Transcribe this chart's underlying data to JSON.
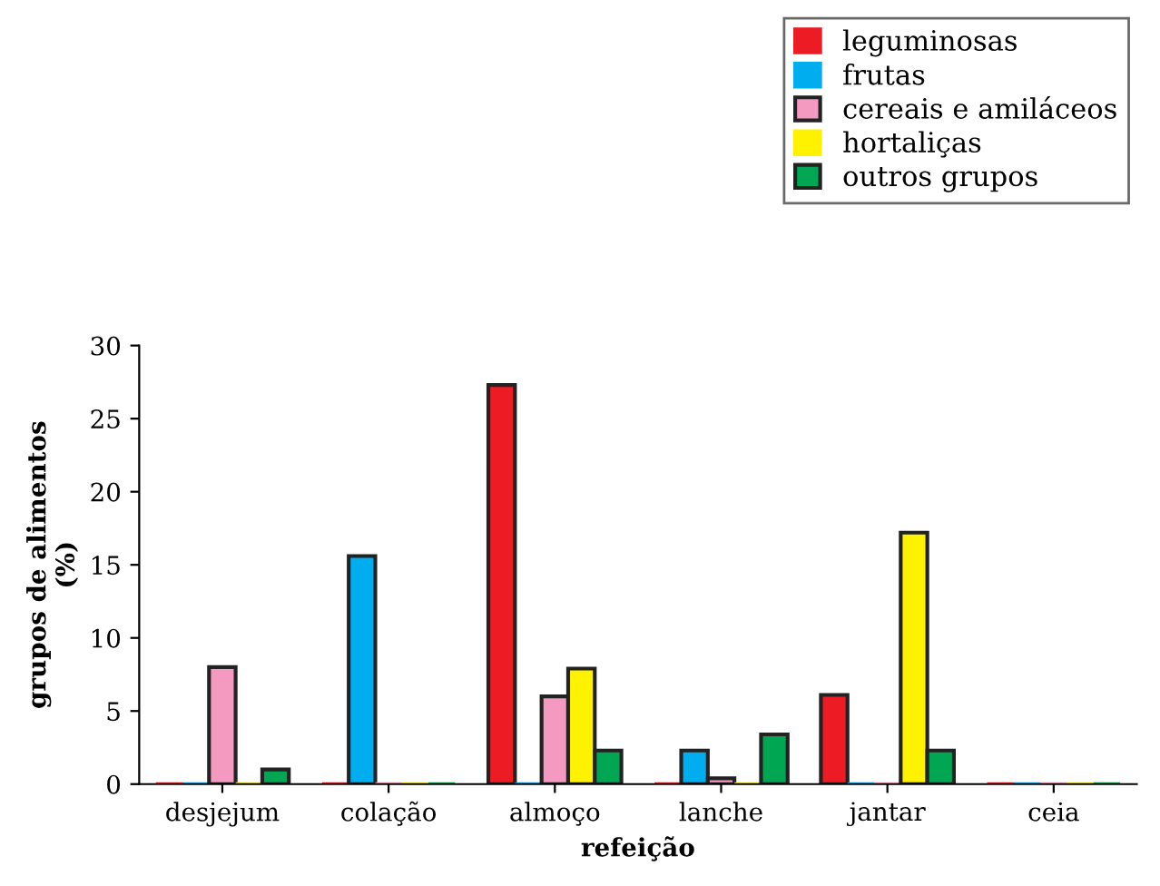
{
  "chart_data": {
    "type": "bar",
    "xlabel": "refeição",
    "ylabel": "grupos de alimentos\n(%)",
    "categories": [
      "desjejum",
      "colação",
      "almoço",
      "lanche",
      "jantar",
      "ceia"
    ],
    "series": [
      {
        "name": "leguminosas",
        "color": "#ed1c24",
        "values": [
          0,
          0,
          27.3,
          0,
          6.1,
          0
        ]
      },
      {
        "name": "frutas",
        "color": "#00aeef",
        "values": [
          0,
          15.6,
          0,
          2.3,
          0,
          0
        ]
      },
      {
        "name": "cereais e amiláceos",
        "color": "#f49ac1",
        "values": [
          8,
          0,
          6,
          0.4,
          0,
          0
        ]
      },
      {
        "name": "hortaliças",
        "color": "#fff200",
        "values": [
          0,
          0,
          7.9,
          0,
          17.2,
          0
        ]
      },
      {
        "name": "outros grupos",
        "color": "#00a651",
        "values": [
          1,
          0,
          2.3,
          3.4,
          2.3,
          0
        ]
      }
    ],
    "ylim": [
      0,
      30
    ],
    "yticks": [
      0,
      5,
      10,
      15,
      20,
      25,
      30
    ],
    "grid": false,
    "legend": "top right"
  }
}
